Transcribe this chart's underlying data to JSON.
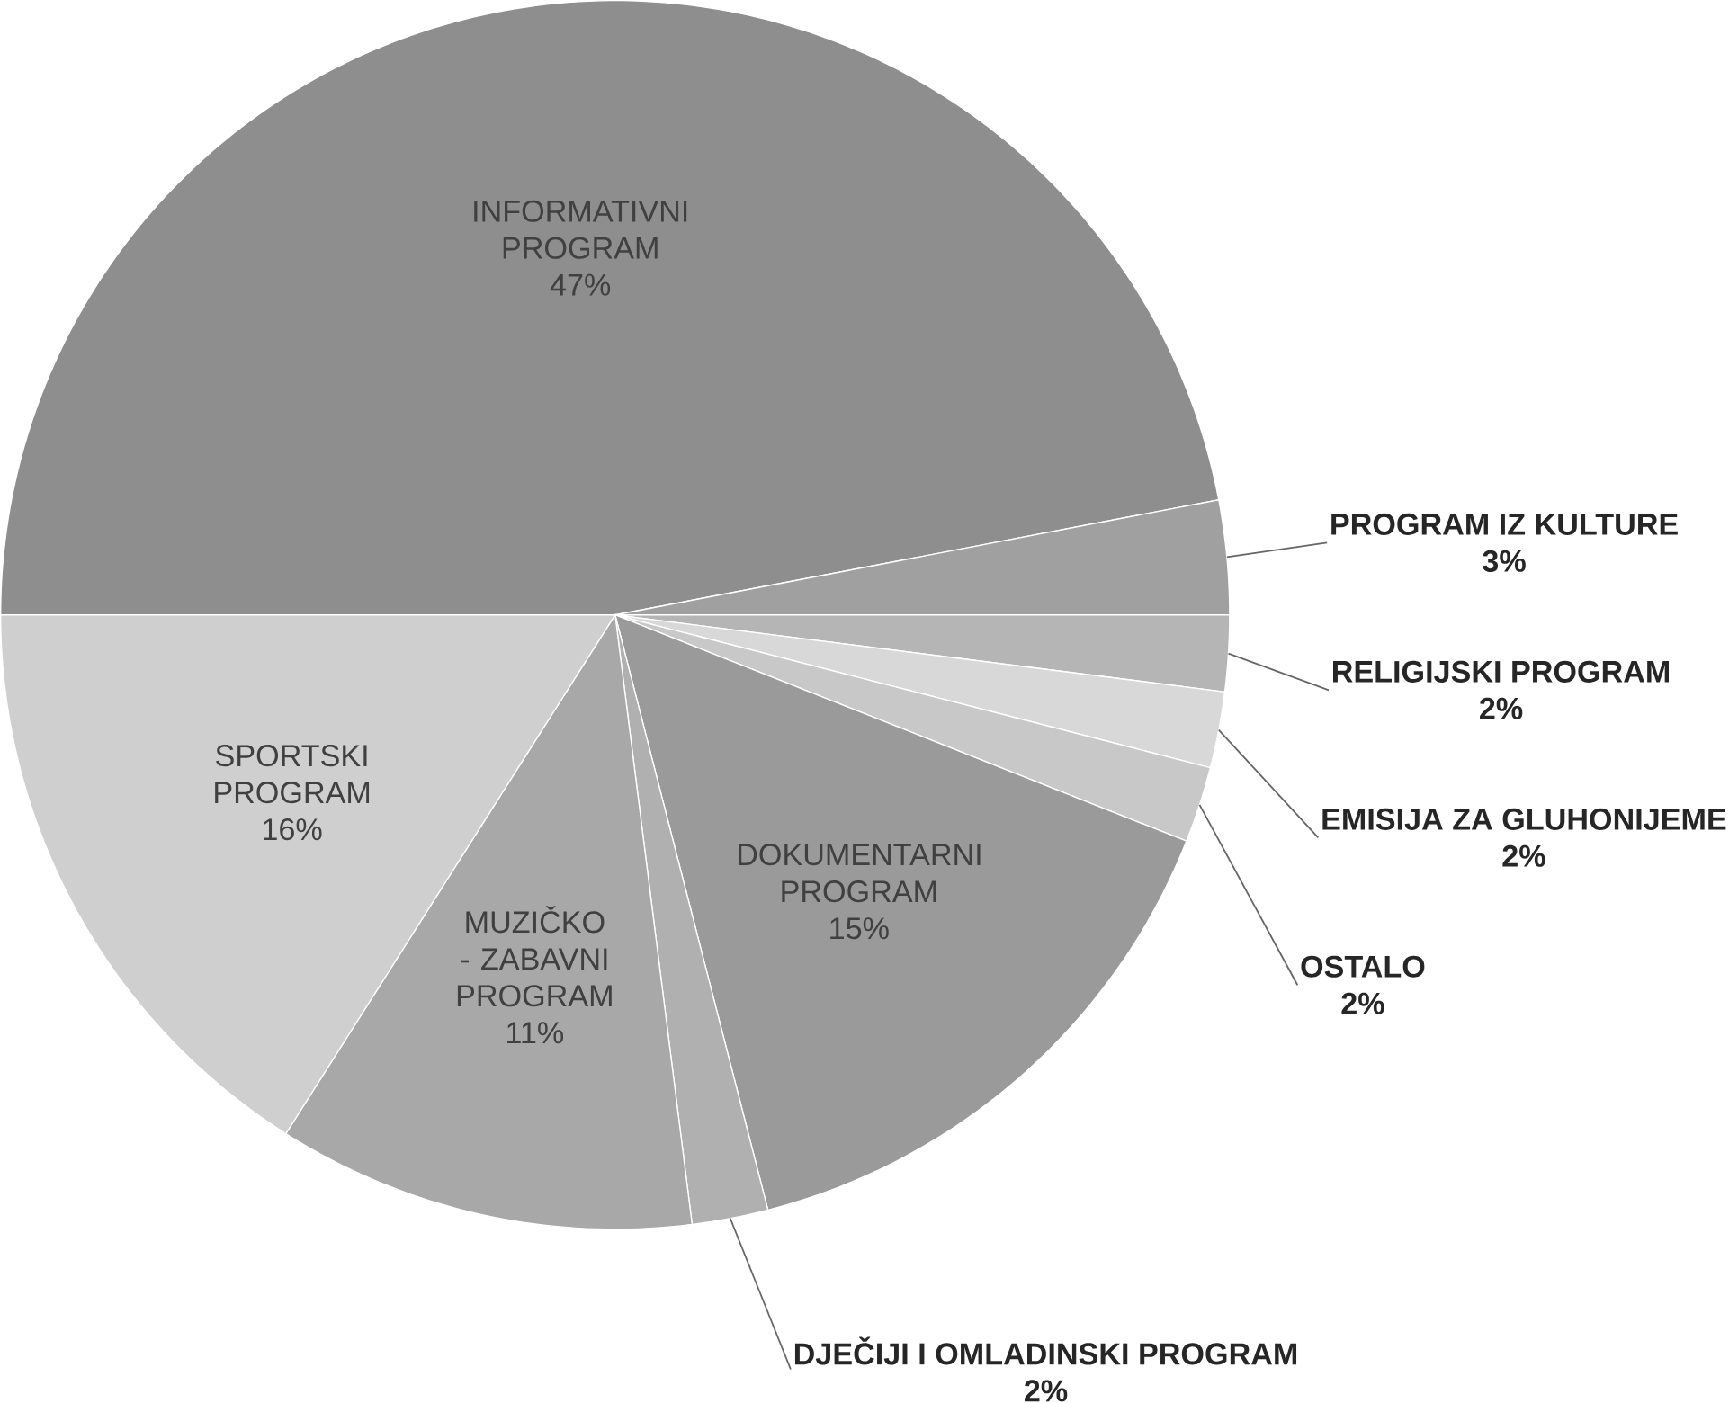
{
  "chart_data": {
    "type": "pie",
    "categories": [
      "INFORMATIVNI PROGRAM",
      "PROGRAM IZ KULTURE",
      "RELIGIJSKI PROGRAM",
      "EMISIJA ZA GLUHONIJEME",
      "OSTALO",
      "DOKUMENTARNI PROGRAM",
      "DJEČIJI I OMLADINSKI PROGRAM",
      "MUZIČKO - ZABAVNI PROGRAM",
      "SPORTSKI PROGRAM"
    ],
    "values": [
      47,
      3,
      2,
      2,
      2,
      15,
      2,
      11,
      16
    ],
    "value_labels": [
      "47%",
      "3%",
      "2%",
      "2%",
      "2%",
      "15%",
      "2%",
      "11%",
      "16%"
    ],
    "colors": [
      "#8e8e8e",
      "#a0a0a0",
      "#b5b5b5",
      "#d8d8d8",
      "#c8c8c8",
      "#9a9a9a",
      "#b0b0b0",
      "#a8a8a8",
      "#cfcfcf"
    ]
  }
}
